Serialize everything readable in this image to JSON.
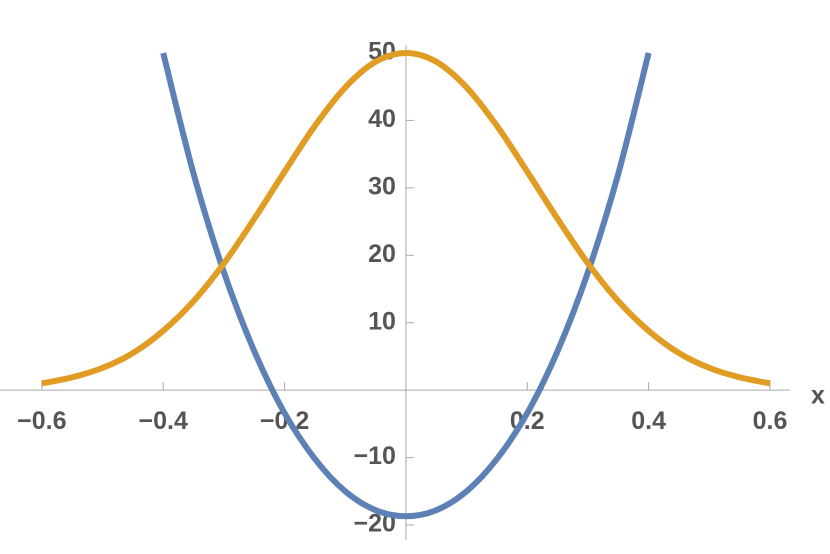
{
  "chart_data": {
    "type": "line",
    "x_label": "x",
    "x": [
      -0.6,
      -0.55,
      -0.5,
      -0.45,
      -0.4,
      -0.35,
      -0.3,
      -0.25,
      -0.2,
      -0.15,
      -0.1,
      -0.05,
      0,
      0.05,
      0.1,
      0.15,
      0.2,
      0.25,
      0.3,
      0.35,
      0.4,
      0.45,
      0.5,
      0.55,
      0.6
    ],
    "series": [
      {
        "color": "#e19c24",
        "values": [
          1.0,
          1.9,
          3.3,
          5.5,
          8.8,
          13.2,
          18.8,
          25.4,
          32.4,
          39.2,
          44.9,
          48.7,
          50,
          48.7,
          44.9,
          39.2,
          32.4,
          25.4,
          18.8,
          13.2,
          8.8,
          5.5,
          3.3,
          1.9,
          1.0
        ]
      },
      {
        "color": "#5e81b5",
        "values": [
          null,
          null,
          null,
          null,
          50.0,
          32.1,
          17.5,
          5.8,
          -3.4,
          -10.2,
          -15.0,
          -17.8,
          -18.7,
          -17.8,
          -15.0,
          -10.2,
          -3.4,
          5.8,
          17.5,
          32.1,
          50.0,
          null,
          null,
          null,
          null
        ]
      }
    ],
    "xlim": [
      -0.669,
      0.633
    ],
    "ylim": [
      -20,
      50
    ],
    "xticks": [
      {
        "value": -0.6,
        "label": "−0.6"
      },
      {
        "value": -0.4,
        "label": "−0.4"
      },
      {
        "value": -0.2,
        "label": "−0.2"
      },
      0.2,
      0.4,
      0.6
    ],
    "yticks": [
      {
        "value": -20,
        "label": "−20"
      },
      {
        "value": -10,
        "label": "−10"
      },
      10,
      20,
      30,
      40,
      50
    ]
  }
}
